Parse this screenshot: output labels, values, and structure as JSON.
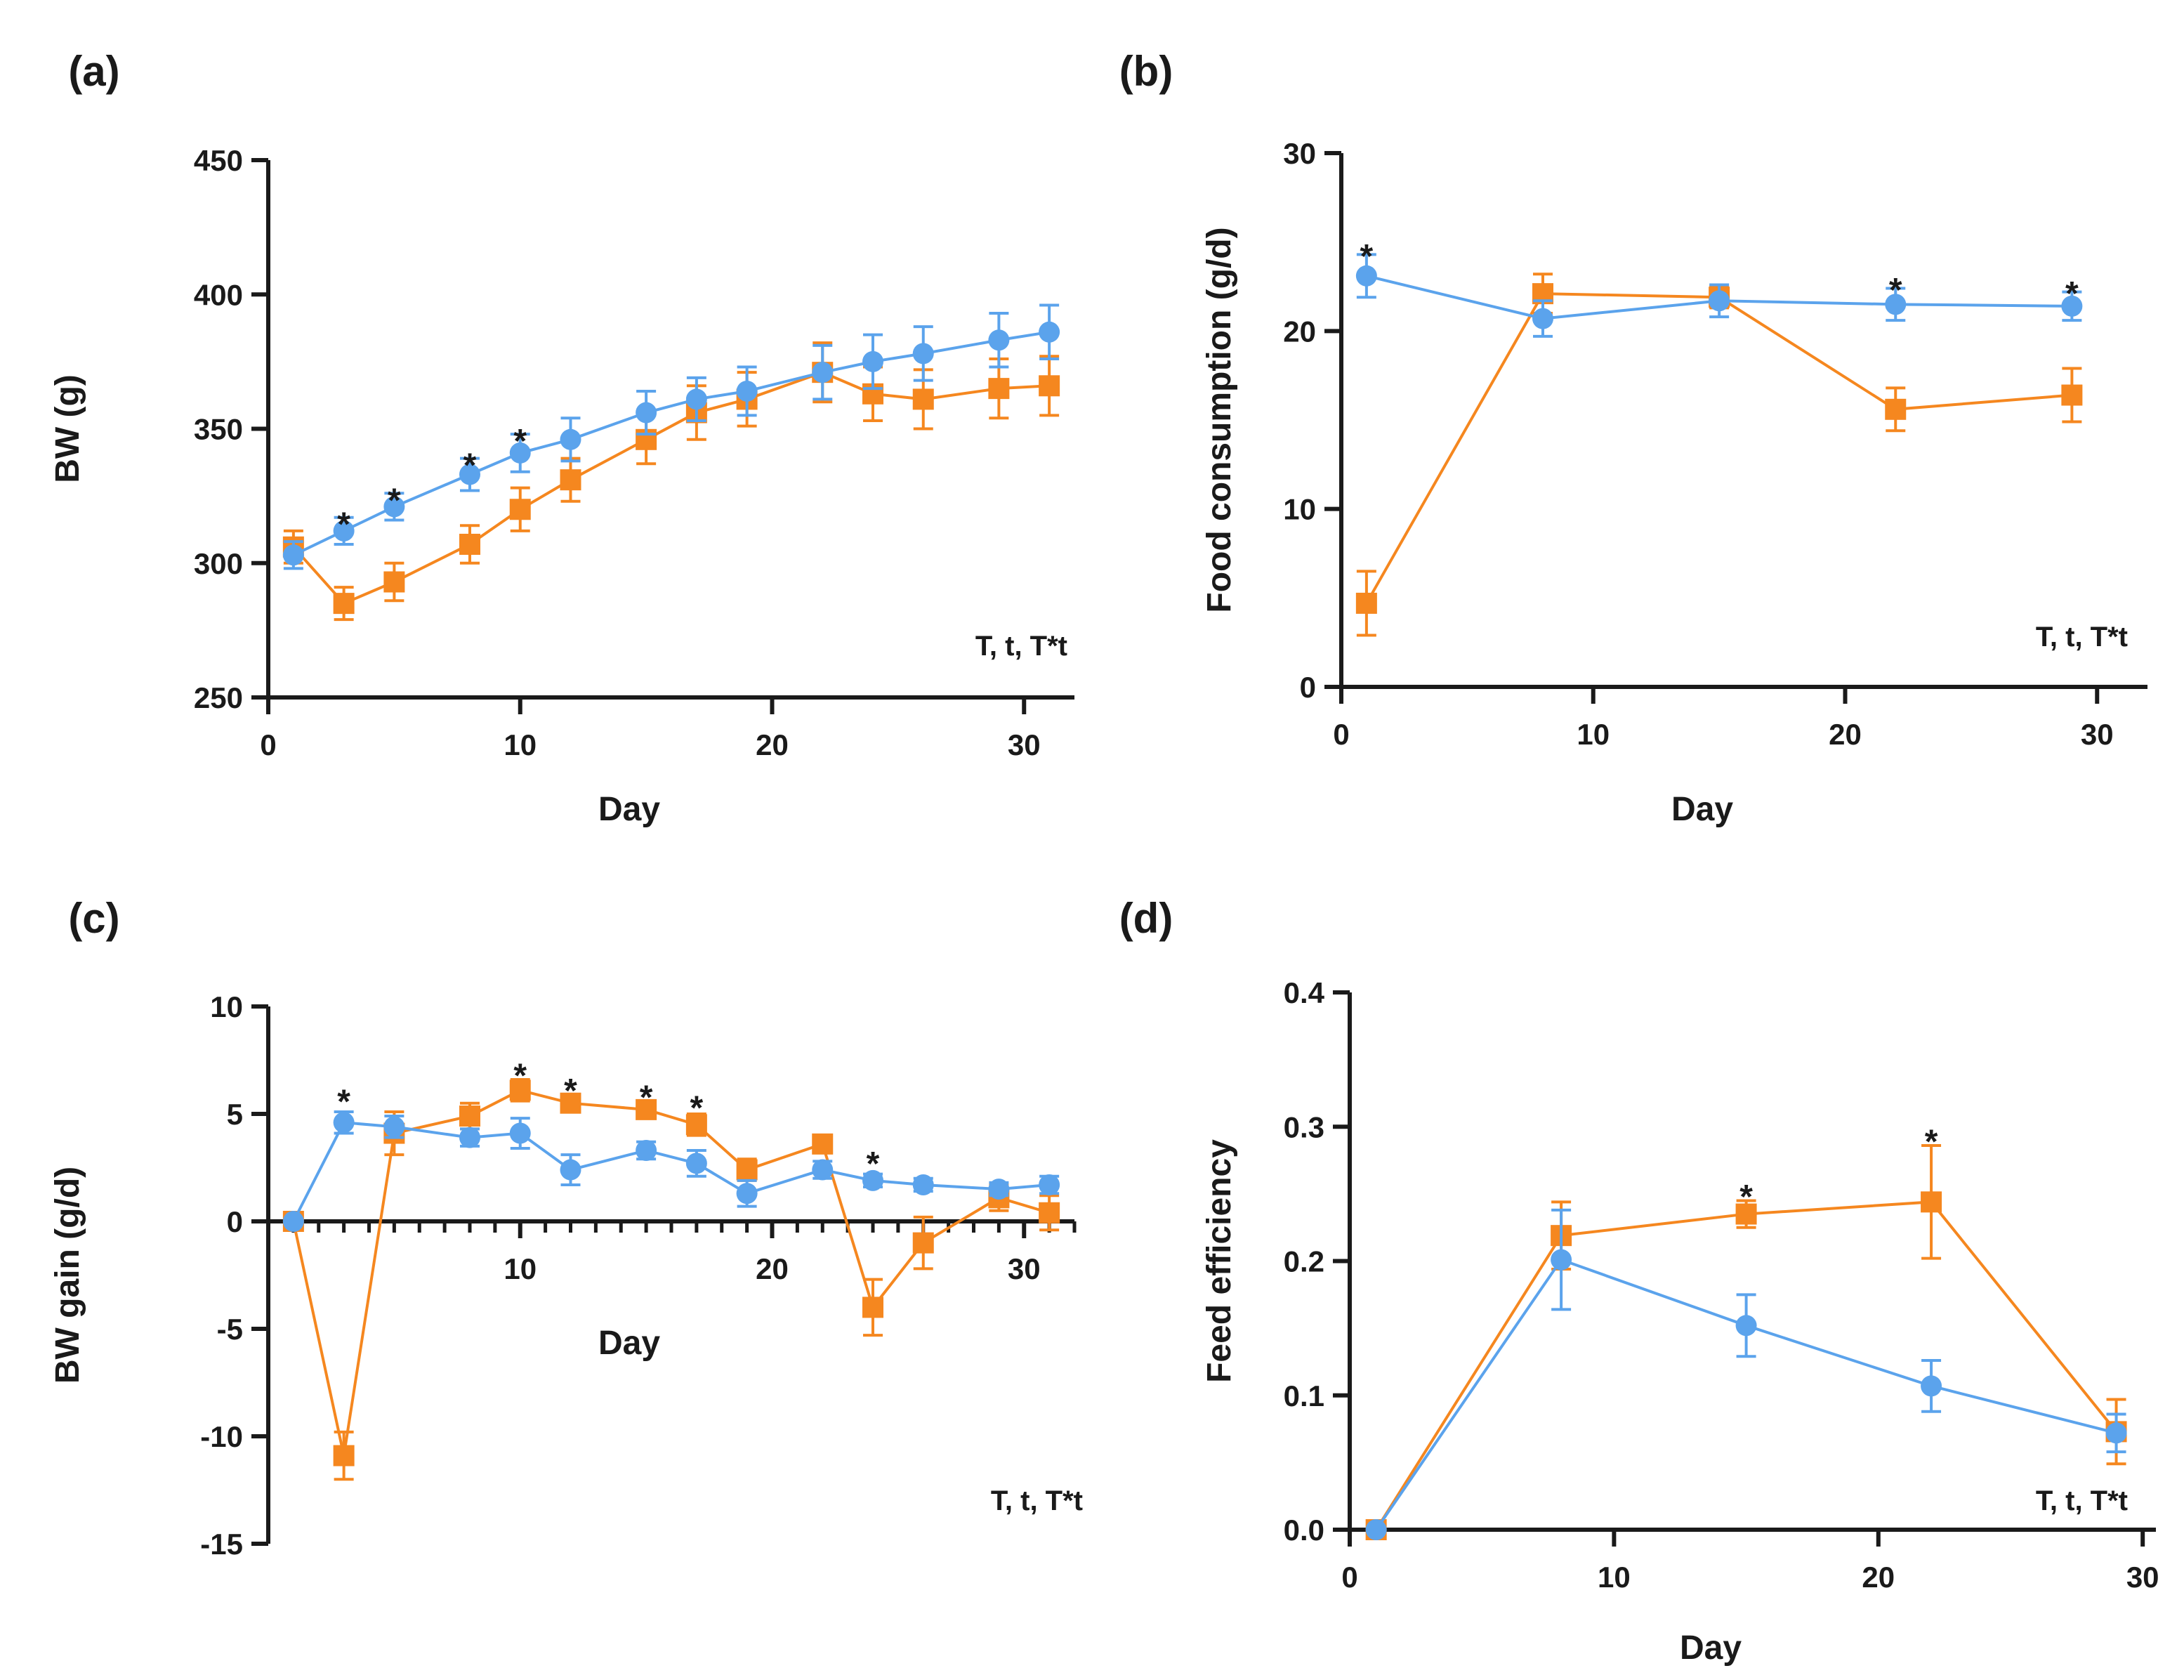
{
  "colors": {
    "blue": "#5ba3ec",
    "orange": "#f5871f",
    "axis": "#1a1a1a"
  },
  "chart_data": [
    {
      "id": "a",
      "panel_label": "(a)",
      "type": "line",
      "xlabel": "Day",
      "ylabel": "BW (g)",
      "xlim": [
        0,
        32
      ],
      "ylim": [
        250,
        450
      ],
      "xticks": [
        0,
        10,
        20,
        30
      ],
      "yticks": [
        250,
        300,
        350,
        400,
        450
      ],
      "minor_xticks": [],
      "stat_text": "T, t, T*t",
      "series": [
        {
          "name": "blue-circle",
          "marker": "circle",
          "color": "#5ba3ec",
          "x": [
            1,
            3,
            5,
            8,
            10,
            12,
            15,
            17,
            19,
            22,
            24,
            26,
            29,
            31
          ],
          "y": [
            303,
            312,
            321,
            333,
            341,
            346,
            356,
            361,
            364,
            371,
            375,
            378,
            383,
            386
          ],
          "err": [
            5,
            5,
            5,
            6,
            7,
            8,
            8,
            8,
            9,
            10,
            10,
            10,
            10,
            10
          ]
        },
        {
          "name": "orange-square",
          "marker": "square",
          "color": "#f5871f",
          "x": [
            1,
            3,
            5,
            8,
            10,
            12,
            15,
            17,
            19,
            22,
            24,
            26,
            29,
            31
          ],
          "y": [
            306,
            285,
            293,
            307,
            320,
            331,
            346,
            356,
            361,
            371,
            363,
            361,
            365,
            366
          ],
          "err": [
            6,
            6,
            7,
            7,
            8,
            8,
            9,
            10,
            10,
            11,
            10,
            11,
            11,
            11
          ]
        }
      ],
      "significance": [
        {
          "x": 3,
          "y": 317,
          "label": "*"
        },
        {
          "x": 5,
          "y": 326,
          "label": "*"
        },
        {
          "x": 8,
          "y": 339,
          "label": "*"
        },
        {
          "x": 10,
          "y": 348,
          "label": "*"
        }
      ]
    },
    {
      "id": "b",
      "panel_label": "(b)",
      "type": "line",
      "xlabel": "Day",
      "ylabel": "Food consumption (g/d)",
      "xlim": [
        0,
        32
      ],
      "ylim": [
        0,
        30
      ],
      "xticks": [
        0,
        10,
        20,
        30
      ],
      "yticks": [
        0,
        10,
        20,
        30
      ],
      "minor_xticks": [],
      "stat_text": "T, t, T*t",
      "series": [
        {
          "name": "blue-circle",
          "marker": "circle",
          "color": "#5ba3ec",
          "x": [
            1,
            8,
            15,
            22,
            29
          ],
          "y": [
            23.1,
            20.7,
            21.7,
            21.5,
            21.4
          ],
          "err": [
            1.2,
            1.0,
            0.9,
            0.9,
            0.8
          ]
        },
        {
          "name": "orange-square",
          "marker": "square",
          "color": "#f5871f",
          "x": [
            1,
            8,
            15,
            22,
            29
          ],
          "y": [
            4.7,
            22.1,
            21.9,
            15.6,
            16.4
          ],
          "err": [
            1.8,
            1.1,
            0.6,
            1.2,
            1.5
          ]
        }
      ],
      "significance": [
        {
          "x": 1,
          "y": 24.6,
          "label": "*"
        },
        {
          "x": 22,
          "y": 22.7,
          "label": "*"
        },
        {
          "x": 29,
          "y": 22.5,
          "label": "*"
        }
      ]
    },
    {
      "id": "c",
      "panel_label": "(c)",
      "type": "line",
      "xlabel": "Day",
      "ylabel": "BW gain (g/d)",
      "xlim": [
        0,
        32
      ],
      "ylim": [
        -15,
        10
      ],
      "xticks": [
        10,
        20,
        30
      ],
      "yticks": [
        -15,
        -10,
        -5,
        0,
        5,
        10
      ],
      "minor_xticks": [
        1,
        2,
        3,
        4,
        5,
        6,
        7,
        8,
        9,
        10,
        11,
        12,
        13,
        14,
        15,
        16,
        17,
        18,
        19,
        20,
        21,
        22,
        23,
        24,
        25,
        26,
        27,
        28,
        29,
        30,
        31,
        32
      ],
      "stat_text": "T, t, T*t",
      "series": [
        {
          "name": "blue-circle",
          "marker": "circle",
          "color": "#5ba3ec",
          "x": [
            1,
            3,
            5,
            8,
            10,
            12,
            15,
            17,
            19,
            22,
            24,
            26,
            29,
            31
          ],
          "y": [
            0,
            4.6,
            4.4,
            3.9,
            4.1,
            2.4,
            3.3,
            2.7,
            1.3,
            2.4,
            1.9,
            1.7,
            1.5,
            1.7
          ],
          "err": [
            0,
            0.5,
            0.5,
            0.4,
            0.7,
            0.7,
            0.4,
            0.6,
            0.6,
            0.4,
            0.3,
            0.3,
            0.3,
            0.4
          ]
        },
        {
          "name": "orange-square",
          "marker": "square",
          "color": "#f5871f",
          "x": [
            1,
            3,
            5,
            8,
            10,
            12,
            15,
            17,
            19,
            22,
            24,
            26,
            29,
            31
          ],
          "y": [
            0,
            -10.9,
            4.1,
            4.9,
            6.1,
            5.5,
            5.2,
            4.5,
            2.4,
            3.6,
            -4.0,
            -1.0,
            1.1,
            0.4
          ],
          "err": [
            0,
            1.1,
            1.0,
            0.6,
            0.5,
            0.4,
            0.4,
            0.5,
            0.5,
            0.4,
            1.3,
            1.2,
            0.6,
            0.8
          ]
        }
      ],
      "significance": [
        {
          "x": 3,
          "y": 5.9,
          "label": "*"
        },
        {
          "x": 10,
          "y": 7.1,
          "label": "*"
        },
        {
          "x": 12,
          "y": 6.4,
          "label": "*"
        },
        {
          "x": 15,
          "y": 6.1,
          "label": "*"
        },
        {
          "x": 17,
          "y": 5.6,
          "label": "*"
        },
        {
          "x": 24,
          "y": 3.0,
          "label": "*"
        }
      ]
    },
    {
      "id": "d",
      "panel_label": "(d)",
      "type": "line",
      "xlabel": "Day",
      "ylabel": "Feed efficiency",
      "xlim": [
        0,
        30.5
      ],
      "ylim": [
        0,
        0.4
      ],
      "xticks": [
        0,
        10,
        20,
        30
      ],
      "yticks": [
        0.0,
        0.1,
        0.2,
        0.3,
        0.4
      ],
      "ytick_labels": [
        "0.0",
        "0.1",
        "0.2",
        "0.3",
        "0.4"
      ],
      "minor_xticks": [],
      "stat_text": "T, t, T*t",
      "series": [
        {
          "name": "blue-circle",
          "marker": "circle",
          "color": "#5ba3ec",
          "x": [
            1,
            8,
            15,
            22,
            29
          ],
          "y": [
            0,
            0.201,
            0.152,
            0.107,
            0.072
          ],
          "err": [
            0,
            0.037,
            0.023,
            0.019,
            0.014
          ]
        },
        {
          "name": "orange-square",
          "marker": "square",
          "color": "#f5871f",
          "x": [
            1,
            8,
            15,
            22,
            29
          ],
          "y": [
            0,
            0.219,
            0.235,
            0.244,
            0.073
          ],
          "err": [
            0,
            0.025,
            0.01,
            0.042,
            0.024
          ]
        }
      ],
      "significance": [
        {
          "x": 15,
          "y": 0.253,
          "label": "*"
        },
        {
          "x": 22,
          "y": 0.294,
          "label": "*"
        }
      ]
    }
  ]
}
